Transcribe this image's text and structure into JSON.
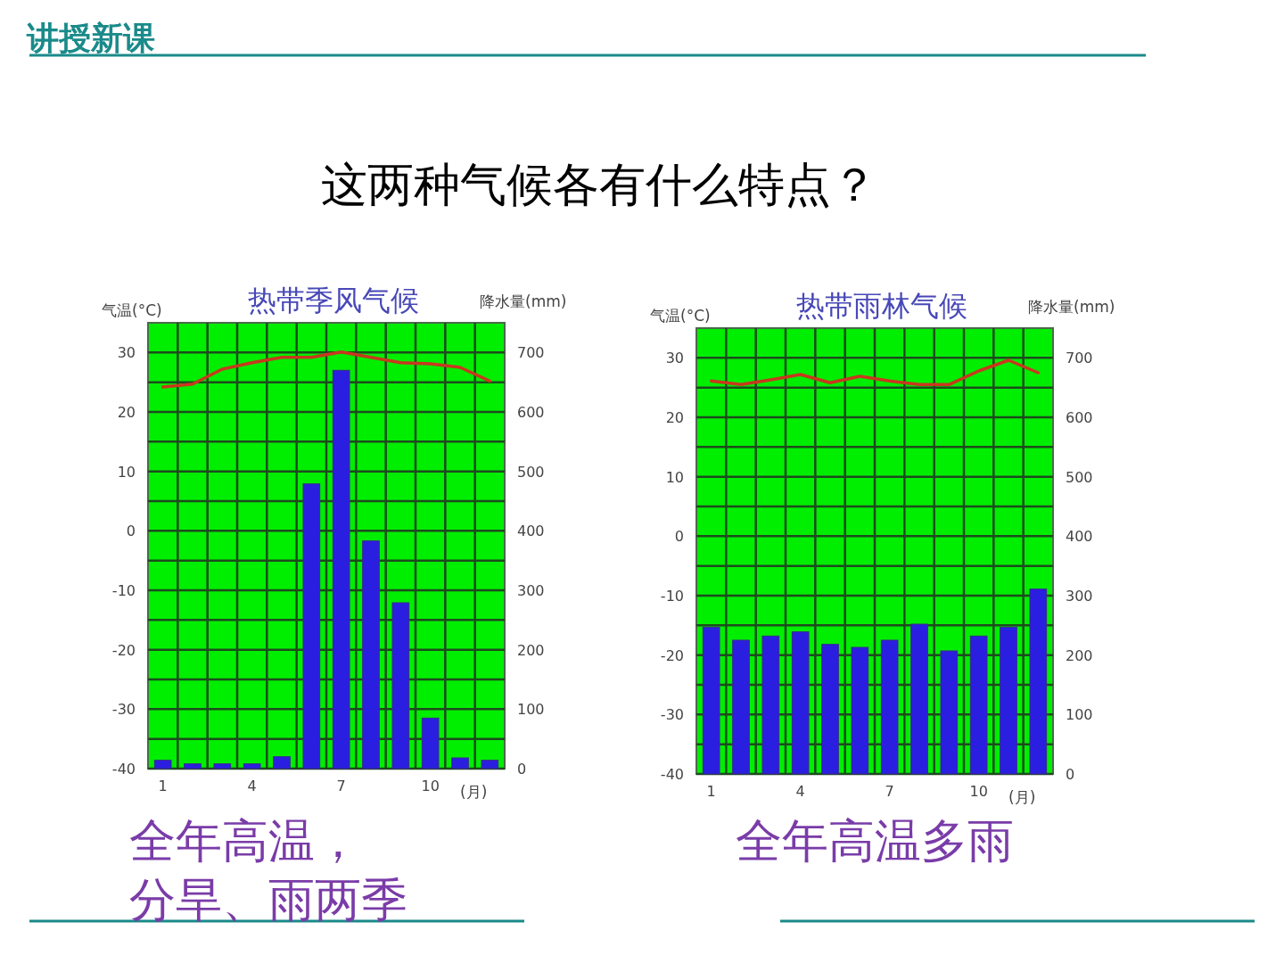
{
  "chart_data": [
    {
      "type": "bar",
      "title": "热带季风气候",
      "ylabel": "气温(°C)",
      "y2label": "降水量(mm)",
      "xlabel": "(月)",
      "categories": [
        "1",
        null,
        null,
        "4",
        null,
        null,
        "7",
        null,
        null,
        "10",
        null,
        null
      ],
      "series": [
        {
          "type": "line",
          "axis": "y",
          "color": "#c8381e",
          "values": [
            24.2,
            24.7,
            27.2,
            28.3,
            29.2,
            29.2,
            30.1,
            29.2,
            28.3,
            28.1,
            27.5,
            25.2
          ]
        },
        {
          "axis": "y2",
          "color": "#2a1ee0",
          "values": [
            14,
            8,
            8,
            8,
            20,
            479,
            670,
            383,
            279,
            85,
            18,
            14
          ]
        }
      ],
      "ylim": [
        -40,
        35
      ],
      "yticks": [
        -40,
        -30,
        -20,
        -10,
        0,
        10,
        20,
        30
      ],
      "y2lim": [
        0,
        750
      ],
      "y2ticks": [
        0,
        100,
        200,
        300,
        400,
        500,
        600,
        700
      ],
      "grid": true,
      "annotations": [
        "讲授新课",
        "这两种气候各有什么特点？",
        "全年高温，分旱、雨两季"
      ]
    },
    {
      "type": "bar",
      "title": "热带雨林气候",
      "ylabel": "气温(°C)",
      "y2label": "降水量(mm)",
      "xlabel": "(月)",
      "categories": [
        "1",
        null,
        null,
        "4",
        null,
        null,
        "7",
        null,
        null,
        "10",
        null,
        null
      ],
      "series": [
        {
          "type": "line",
          "axis": "y",
          "color": "#c8381e",
          "values": [
            26.1,
            25.5,
            26.3,
            27.2,
            25.8,
            26.9,
            26.1,
            25.5,
            25.5,
            27.8,
            29.6,
            27.5
          ]
        },
        {
          "axis": "y2",
          "color": "#2a1ee0",
          "values": [
            247,
            225,
            232,
            239,
            218,
            213,
            225,
            252,
            207,
            232,
            247,
            311
          ]
        }
      ],
      "ylim": [
        -40,
        35
      ],
      "yticks": [
        -40,
        -30,
        -20,
        -10,
        0,
        10,
        20,
        30
      ],
      "y2lim": [
        0,
        750
      ],
      "y2ticks": [
        0,
        100,
        200,
        300,
        400,
        500,
        600,
        700
      ],
      "grid": true,
      "annotations": [
        "全年高温多雨"
      ]
    }
  ]
}
